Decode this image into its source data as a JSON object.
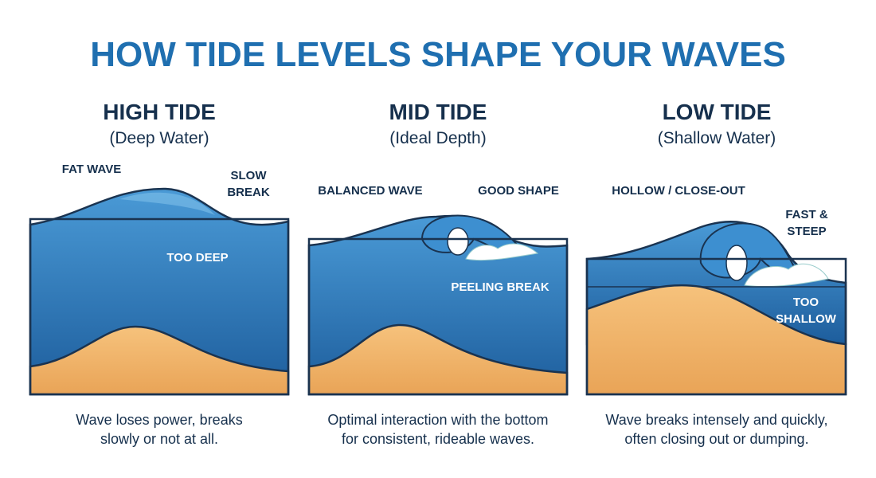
{
  "title": "HOW TIDE LEVELS SHAPE YOUR WAVES",
  "panels": [
    {
      "heading": "HIGH TIDE",
      "subheading": "(Deep Water)",
      "labels": [
        [
          "FAT WAVE"
        ],
        [
          "SLOW",
          "BREAK"
        ],
        [
          "TOO DEEP"
        ]
      ],
      "caption": [
        "Wave loses power, breaks",
        "slowly or not at all."
      ]
    },
    {
      "heading": "MID TIDE",
      "subheading": "(Ideal Depth)",
      "labels": [
        [
          "BALANCED WAVE"
        ],
        [
          "GOOD SHAPE"
        ],
        [
          "PEELING BREAK"
        ]
      ],
      "caption": [
        "Optimal interaction with the bottom",
        "for consistent, rideable waves."
      ]
    },
    {
      "heading": "LOW TIDE",
      "subheading": "(Shallow Water)",
      "labels": [
        [
          "HOLLOW / CLOSE-OUT"
        ],
        [
          "FAST &",
          "STEEP"
        ],
        [
          "TOO",
          "SHALLOW"
        ]
      ],
      "caption": [
        "Wave breaks intensely and quickly,",
        "often closing out or dumping."
      ]
    }
  ]
}
